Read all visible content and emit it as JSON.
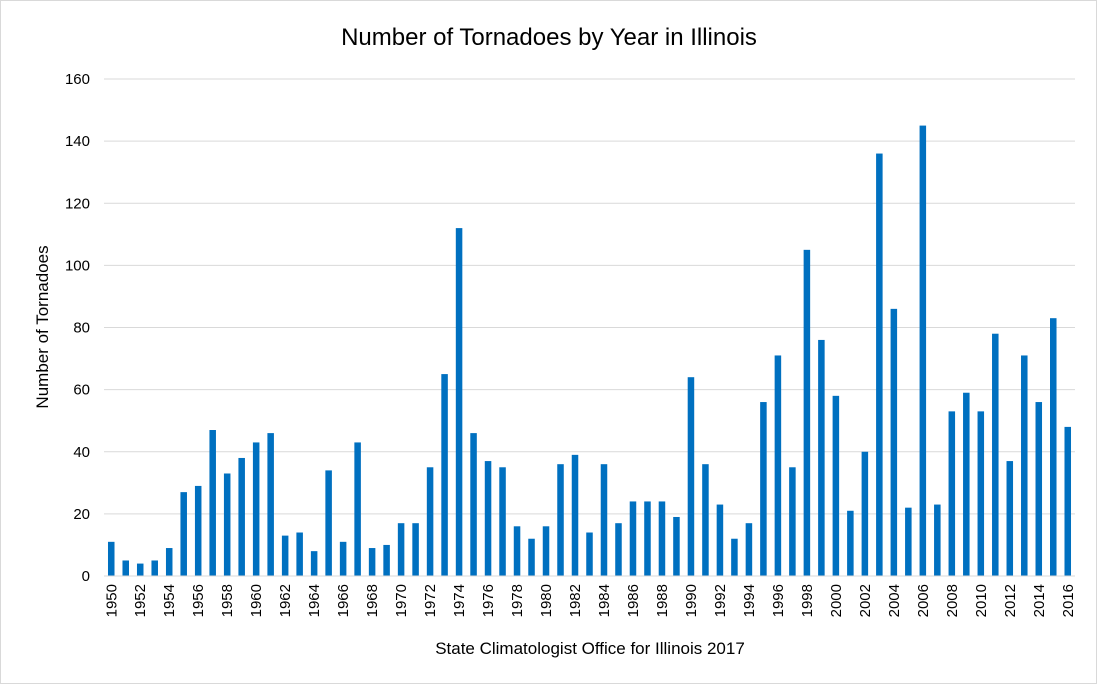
{
  "chart_data": {
    "type": "bar",
    "title": "Number of Tornadoes by Year in Illinois",
    "ylabel": "Number of Tornadoes",
    "xlabel": "State Climatologist Office for Illinois 2017",
    "ylim": [
      0,
      160
    ],
    "yticks": [
      0,
      20,
      40,
      60,
      80,
      100,
      120,
      140,
      160
    ],
    "grid": true,
    "legend": "none",
    "bar_color": "#0070C0",
    "grid_color": "#d9d9d9",
    "x_tick_label_step": 2,
    "categories": [
      "1950",
      "1951",
      "1952",
      "1953",
      "1954",
      "1955",
      "1956",
      "1957",
      "1958",
      "1959",
      "1960",
      "1961",
      "1962",
      "1963",
      "1964",
      "1965",
      "1966",
      "1967",
      "1968",
      "1969",
      "1970",
      "1971",
      "1972",
      "1973",
      "1974",
      "1975",
      "1976",
      "1977",
      "1978",
      "1979",
      "1980",
      "1981",
      "1982",
      "1983",
      "1984",
      "1985",
      "1986",
      "1987",
      "1988",
      "1989",
      "1990",
      "1991",
      "1992",
      "1993",
      "1994",
      "1995",
      "1996",
      "1997",
      "1998",
      "1999",
      "2000",
      "2001",
      "2002",
      "2003",
      "2004",
      "2005",
      "2006",
      "2007",
      "2008",
      "2009",
      "2010",
      "2011",
      "2012",
      "2013",
      "2014",
      "2015",
      "2016"
    ],
    "values": [
      11,
      5,
      4,
      5,
      9,
      27,
      29,
      47,
      33,
      38,
      43,
      46,
      13,
      14,
      8,
      34,
      11,
      43,
      9,
      10,
      17,
      17,
      35,
      65,
      112,
      46,
      37,
      35,
      16,
      12,
      16,
      36,
      39,
      14,
      36,
      17,
      24,
      24,
      24,
      19,
      64,
      36,
      23,
      12,
      17,
      56,
      71,
      35,
      105,
      76,
      58,
      21,
      40,
      136,
      86,
      22,
      145,
      23,
      53,
      59,
      53,
      78,
      37,
      71,
      56,
      83,
      48
    ]
  }
}
